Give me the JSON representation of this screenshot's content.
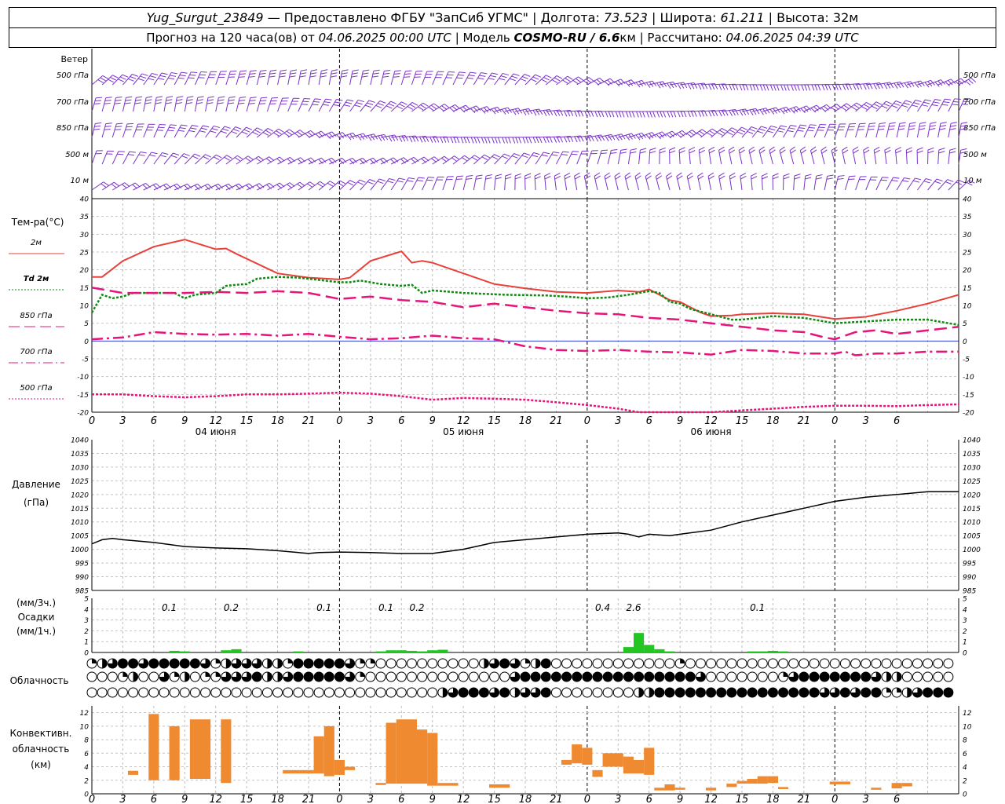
{
  "header": {
    "station": "Yug_Surgut_23849",
    "provider": "— Предоставлено ФГБУ \"ЗапСиб УГМС\"",
    "lon_label": "| Долгота:",
    "lon": "73.523",
    "lat_label": "| Широта:",
    "lat": "61.211",
    "alt_label": "| Высота:",
    "alt": "32м",
    "forecast_label": "Прогноз на 120 часа(ов) от",
    "forecast_start": "04.06.2025 00:00 UTC",
    "model_label": "| Модель",
    "model": "COSMO-RU / 6.6",
    "model_unit": "км",
    "calc_label": "| Рассчитано:",
    "calc_time": "04.06.2025 04:39 UTC"
  },
  "panels": {
    "wind_title": "Ветер",
    "wind_levels": [
      "500 гПа",
      "700 гПа",
      "850 гПа",
      "500 м",
      "10  м"
    ],
    "temp_title": "Тем-ра(°C)",
    "temp_legend": [
      "2м",
      "Td  2м",
      "850 гПа",
      "700 гПа",
      "500 гПа"
    ],
    "pressure_title": "Давление",
    "pressure_unit": "(гПа)",
    "precip_unit_top": "(мм/3ч.)",
    "precip_title": "Осадки",
    "precip_unit_bottom": "(мм/1ч.)",
    "cloud_title": "Облачность",
    "conv_title_1": "Конвективн.",
    "conv_title_2": "облачность",
    "conv_unit": "(км)"
  },
  "colors": {
    "t2m": "#e8403a",
    "td2m": "#118a11",
    "t850": "#e6147a",
    "t700": "#e6147a",
    "t500": "#e6147a",
    "wind": "#7a33c9",
    "pressure": "#000000",
    "precip": "#22c522",
    "conv": "#f08a30",
    "zero_line": "#2f3fd8"
  },
  "time_axis": {
    "hours": [
      "0",
      "3",
      "6",
      "9",
      "12",
      "15",
      "18",
      "21",
      "0",
      "3",
      "6",
      "9",
      "12",
      "15",
      "18",
      "21",
      "0",
      "3",
      "6",
      "9",
      "12",
      "15",
      "18",
      "21",
      "0",
      "3",
      "6"
    ],
    "day_labels": [
      {
        "label": "04 июня",
        "hour": 12
      },
      {
        "label": "05 июня",
        "hour": 36
      },
      {
        "label": "06 июня",
        "hour": 60
      }
    ],
    "day_boundaries": [
      24,
      48,
      72,
      96
    ]
  },
  "chart_data": [
    {
      "type": "line",
      "name": "temperature",
      "ylim": [
        -20,
        40
      ],
      "yticks": [
        "40",
        "35",
        "30",
        "25",
        "20",
        "15",
        "10",
        "5",
        "0",
        "-5",
        "-10",
        "-15",
        "-20"
      ],
      "series": [
        {
          "name": "2м",
          "x": [
            0,
            1,
            3,
            6,
            9,
            12,
            13,
            14,
            18,
            21,
            24,
            25,
            27,
            30,
            31,
            32,
            33,
            36,
            39,
            42,
            45,
            48,
            51,
            53,
            54,
            56,
            57,
            59,
            60,
            62,
            63,
            66,
            69,
            72,
            75,
            78,
            81,
            84
          ],
          "y": [
            18,
            18,
            22.5,
            26.5,
            28.5,
            25.8,
            26,
            24.5,
            19,
            17.8,
            17.3,
            17.8,
            22.5,
            25.2,
            22,
            22.5,
            22,
            19,
            16,
            14.8,
            13.8,
            13.5,
            14.2,
            13.8,
            14.5,
            11.5,
            11,
            8,
            7,
            7.2,
            7.5,
            7.8,
            7.5,
            6.2,
            6.8,
            8.5,
            10.5,
            13
          ]
        },
        {
          "name": "Td  2м",
          "x": [
            0,
            1,
            2,
            3,
            4,
            5,
            6,
            8,
            9,
            10,
            12,
            13,
            14,
            15,
            16,
            18,
            20,
            24,
            25,
            26,
            28,
            30,
            31,
            32,
            33,
            34,
            36,
            40,
            44,
            46,
            48,
            50,
            52,
            54,
            55,
            56,
            57,
            58,
            60,
            62,
            63,
            66,
            69,
            72,
            75,
            78,
            81,
            84
          ],
          "y": [
            8,
            13,
            12,
            12.5,
            13.5,
            13.5,
            13.5,
            13.5,
            12,
            13,
            13.5,
            15.5,
            15.8,
            16,
            17.5,
            18,
            17.8,
            16.5,
            16.5,
            17,
            16,
            15.5,
            15.8,
            13.5,
            14.2,
            14,
            13.5,
            13,
            12.8,
            12.5,
            12,
            12.2,
            13,
            14,
            13.5,
            11,
            10.5,
            9,
            7.5,
            6,
            6,
            7,
            6.5,
            5,
            5.5,
            6,
            6,
            4.5
          ]
        },
        {
          "name": "850 гПа",
          "x": [
            0,
            3,
            6,
            9,
            12,
            15,
            18,
            21,
            24,
            27,
            30,
            33,
            36,
            39,
            42,
            45,
            48,
            51,
            54,
            57,
            60,
            63,
            66,
            69,
            71,
            72,
            73,
            74,
            76,
            78,
            81,
            84
          ],
          "y": [
            15,
            13.5,
            13.5,
            13.5,
            13.8,
            13.5,
            14,
            13.5,
            11.8,
            12.5,
            11.5,
            11,
            9.5,
            10.5,
            9.5,
            8.5,
            7.8,
            7.5,
            6.5,
            6,
            5,
            4,
            3,
            2.5,
            1,
            0.5,
            1.5,
            2.5,
            3,
            2,
            3,
            4
          ]
        },
        {
          "name": "700 гПа",
          "x": [
            0,
            3,
            6,
            9,
            12,
            15,
            18,
            21,
            24,
            27,
            30,
            33,
            36,
            39,
            42,
            45,
            48,
            51,
            54,
            57,
            60,
            63,
            66,
            69,
            72,
            73,
            74,
            76,
            78,
            81,
            84
          ],
          "y": [
            0.5,
            1,
            2.5,
            2,
            1.8,
            2,
            1.5,
            2,
            1.2,
            0.5,
            0.8,
            1.5,
            0.8,
            0.5,
            -1.5,
            -2.5,
            -2.8,
            -2.5,
            -3,
            -3.2,
            -3.8,
            -2.5,
            -2.8,
            -3.5,
            -3.5,
            -3,
            -4,
            -3.5,
            -3.5,
            -3,
            -3
          ]
        },
        {
          "name": "500 гПа",
          "x": [
            0,
            3,
            6,
            9,
            12,
            15,
            18,
            21,
            24,
            27,
            30,
            33,
            36,
            39,
            42,
            45,
            48,
            51,
            52,
            53,
            60,
            63,
            66,
            69,
            72,
            75,
            78,
            81,
            84
          ],
          "y": [
            -15,
            -15,
            -15.5,
            -15.8,
            -15.5,
            -15,
            -15,
            -14.8,
            -14.5,
            -14.8,
            -15.5,
            -16.5,
            -16,
            -16.2,
            -16.5,
            -17.2,
            -18,
            -19,
            -19.5,
            -20.3,
            -20.3,
            -19.5,
            -19,
            -18.5,
            -18.2,
            -18.2,
            -18.3,
            -18,
            -17.8
          ]
        }
      ]
    },
    {
      "type": "line",
      "name": "pressure",
      "ylim": [
        985,
        1040
      ],
      "yticks": [
        "1040",
        "1035",
        "1030",
        "1025",
        "1020",
        "1015",
        "1010",
        "1005",
        "1000",
        "995",
        "990",
        "985"
      ],
      "series": [
        {
          "x": [
            0,
            1,
            2,
            3,
            6,
            9,
            12,
            15,
            18,
            21,
            22,
            24,
            27,
            30,
            33,
            36,
            39,
            42,
            45,
            48,
            51,
            52,
            53,
            54,
            56,
            57,
            60,
            63,
            66,
            69,
            72,
            75,
            78,
            81,
            84
          ],
          "y": [
            1002,
            1003.5,
            1004,
            1003.5,
            1002.5,
            1001,
            1000.5,
            1000.2,
            999.5,
            998.5,
            998.8,
            999,
            998.8,
            998.5,
            998.5,
            1000,
            1002.5,
            1003.5,
            1004.5,
            1005.5,
            1006,
            1005.5,
            1004.5,
            1005.5,
            1005,
            1005.5,
            1007,
            1010,
            1012.5,
            1015,
            1017.5,
            1019,
            1020,
            1021,
            1021
          ]
        }
      ]
    },
    {
      "type": "bar",
      "name": "precipitation",
      "ylim": [
        0,
        5
      ],
      "yticks": [
        "5",
        "4",
        "3",
        "2",
        "1",
        "0"
      ],
      "x": [
        8,
        9,
        13,
        14,
        20,
        28,
        29,
        30,
        31,
        32,
        33,
        34,
        52,
        53,
        54,
        55,
        56,
        64,
        65,
        66,
        67
      ],
      "values": [
        0.15,
        0.1,
        0.2,
        0.3,
        0.1,
        0.1,
        0.2,
        0.2,
        0.15,
        0.1,
        0.2,
        0.25,
        0.5,
        1.8,
        0.7,
        0.3,
        0.1,
        0.1,
        0.1,
        0.15,
        0.1
      ],
      "labels": [
        {
          "text": "0.1",
          "hour": 7.5
        },
        {
          "text": "0.2",
          "hour": 13.5
        },
        {
          "text": "0.1",
          "hour": 22.5
        },
        {
          "text": "0.1",
          "hour": 28.5
        },
        {
          "text": "0.2",
          "hour": 31.5
        },
        {
          "text": "0.4",
          "hour": 49.5
        },
        {
          "text": "2.6",
          "hour": 52.5
        },
        {
          "text": "0.1",
          "hour": 64.5
        }
      ]
    },
    {
      "type": "bar",
      "name": "convective cloud",
      "ylim": [
        0,
        13
      ],
      "yticks": [
        "12",
        "10",
        "8",
        "6",
        "4",
        "2",
        "0"
      ],
      "bars": [
        {
          "x0": 3.5,
          "x1": 4.5,
          "bottom": 2.8,
          "top": 3.4
        },
        {
          "x0": 5.5,
          "x1": 6.5,
          "bottom": 2,
          "top": 11.8
        },
        {
          "x0": 7.5,
          "x1": 8.5,
          "bottom": 2,
          "top": 10
        },
        {
          "x0": 9.5,
          "x1": 11.5,
          "bottom": 2.2,
          "top": 11
        },
        {
          "x0": 12.5,
          "x1": 13.5,
          "bottom": 1.6,
          "top": 11
        },
        {
          "x0": 18.5,
          "x1": 21.5,
          "bottom": 3,
          "top": 3.5
        },
        {
          "x0": 21.5,
          "x1": 22.5,
          "bottom": 3,
          "top": 8.5
        },
        {
          "x0": 22.5,
          "x1": 23.5,
          "bottom": 2.6,
          "top": 10
        },
        {
          "x0": 23.5,
          "x1": 24.5,
          "bottom": 2.8,
          "top": 5
        },
        {
          "x0": 24.5,
          "x1": 25.5,
          "bottom": 3.5,
          "top": 4
        },
        {
          "x0": 27.5,
          "x1": 28.5,
          "bottom": 1.3,
          "top": 1.6
        },
        {
          "x0": 28.5,
          "x1": 29.5,
          "bottom": 1.5,
          "top": 10.5
        },
        {
          "x0": 29.5,
          "x1": 31.5,
          "bottom": 1.5,
          "top": 11
        },
        {
          "x0": 31.5,
          "x1": 32.5,
          "bottom": 1.5,
          "top": 9.5
        },
        {
          "x0": 32.5,
          "x1": 33.5,
          "bottom": 1.2,
          "top": 9
        },
        {
          "x0": 33.5,
          "x1": 35.5,
          "bottom": 1.2,
          "top": 1.6
        },
        {
          "x0": 38.5,
          "x1": 40.5,
          "bottom": 0.9,
          "top": 1.4
        },
        {
          "x0": 45.5,
          "x1": 46.5,
          "bottom": 4.3,
          "top": 5
        },
        {
          "x0": 46.5,
          "x1": 47.5,
          "bottom": 4.5,
          "top": 7.3
        },
        {
          "x0": 47.5,
          "x1": 48.5,
          "bottom": 4.3,
          "top": 6.8
        },
        {
          "x0": 48.5,
          "x1": 49.5,
          "bottom": 2.5,
          "top": 3.5
        },
        {
          "x0": 49.5,
          "x1": 51.5,
          "bottom": 4,
          "top": 6
        },
        {
          "x0": 51.5,
          "x1": 52.5,
          "bottom": 3,
          "top": 5.5
        },
        {
          "x0": 52.5,
          "x1": 53.5,
          "bottom": 3,
          "top": 5
        },
        {
          "x0": 53.5,
          "x1": 54.5,
          "bottom": 2.8,
          "top": 6.8
        },
        {
          "x0": 54.5,
          "x1": 55.5,
          "bottom": 0.5,
          "top": 0.9
        },
        {
          "x0": 55.5,
          "x1": 56.5,
          "bottom": 0.5,
          "top": 1.4
        },
        {
          "x0": 56.5,
          "x1": 57.5,
          "bottom": 0.6,
          "top": 0.9
        },
        {
          "x0": 59.5,
          "x1": 60.5,
          "bottom": 0.5,
          "top": 0.9
        },
        {
          "x0": 61.5,
          "x1": 62.5,
          "bottom": 1,
          "top": 1.5
        },
        {
          "x0": 62.5,
          "x1": 63.5,
          "bottom": 1.5,
          "top": 1.9
        },
        {
          "x0": 63.5,
          "x1": 64.5,
          "bottom": 1.5,
          "top": 2.2
        },
        {
          "x0": 64.5,
          "x1": 65.5,
          "bottom": 1.5,
          "top": 2.6
        },
        {
          "x0": 65.5,
          "x1": 66.5,
          "bottom": 1.6,
          "top": 2.6
        },
        {
          "x0": 66.5,
          "x1": 67.5,
          "bottom": 0.7,
          "top": 1
        },
        {
          "x0": 71.5,
          "x1": 73.5,
          "bottom": 1.4,
          "top": 1.8
        },
        {
          "x0": 75.5,
          "x1": 76.5,
          "bottom": 0.6,
          "top": 0.9
        },
        {
          "x0": 77.5,
          "x1": 78.5,
          "bottom": 0.8,
          "top": 1.6
        },
        {
          "x0": 78.5,
          "x1": 79.5,
          "bottom": 1.1,
          "top": 1.6
        }
      ]
    }
  ],
  "cloud_cover": {
    "levels": [
      "high",
      "middle",
      "low"
    ],
    "rows": [
      "123443444443123332214444431100000000002343124000000000000100000000000000000000000000",
      "000120031201133342234444431000000000000003444444444444444443000000013444444432200000",
      "000000000000000000000000000000000023444342334000000002244444444444444443343441123444"
    ]
  }
}
